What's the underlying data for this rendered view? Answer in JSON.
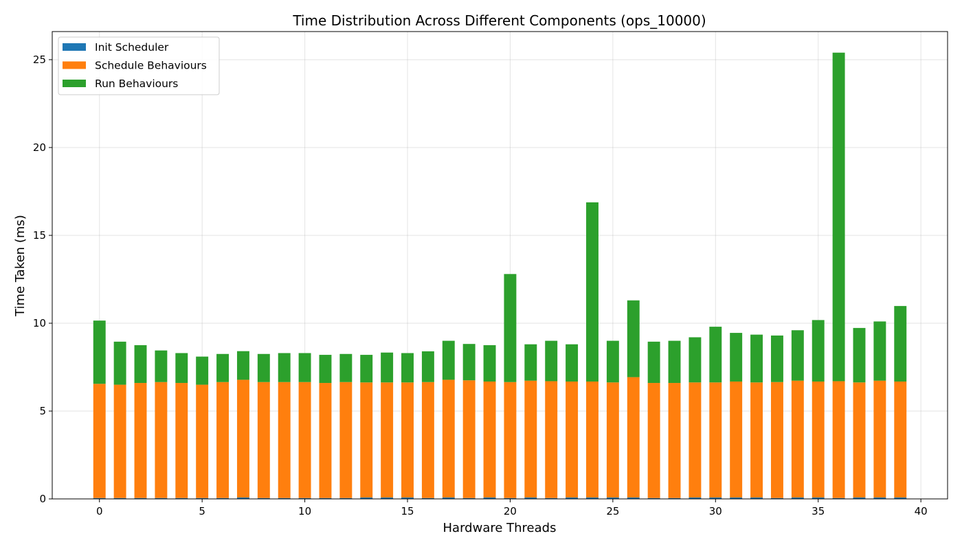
{
  "chart_data": {
    "type": "bar",
    "stacked": true,
    "title": "Time Distribution Across Different Components (ops_10000)",
    "xlabel": "Hardware Threads",
    "ylabel": "Time Taken (ms)",
    "xlim": [
      -2.3,
      41.3
    ],
    "ylim": [
      0,
      26.6
    ],
    "xticks": [
      0,
      5,
      10,
      15,
      20,
      25,
      30,
      35,
      40
    ],
    "yticks": [
      0,
      5,
      10,
      15,
      20,
      25
    ],
    "grid": true,
    "legend_position": "top-left",
    "x": [
      0,
      1,
      2,
      3,
      4,
      5,
      6,
      7,
      8,
      9,
      10,
      11,
      12,
      13,
      14,
      15,
      16,
      17,
      18,
      19,
      20,
      21,
      22,
      23,
      24,
      25,
      26,
      27,
      28,
      29,
      30,
      31,
      32,
      33,
      34,
      35,
      36,
      37,
      38,
      39
    ],
    "series": [
      {
        "name": "Init Scheduler",
        "color": "#1f77b4",
        "values": [
          0.05,
          0.05,
          0.05,
          0.05,
          0.05,
          0.05,
          0.05,
          0.08,
          0.05,
          0.05,
          0.05,
          0.05,
          0.05,
          0.08,
          0.08,
          0.08,
          0.05,
          0.08,
          0.05,
          0.08,
          0.05,
          0.08,
          0.05,
          0.08,
          0.08,
          0.08,
          0.08,
          0.05,
          0.05,
          0.08,
          0.08,
          0.08,
          0.08,
          0.05,
          0.08,
          0.08,
          0.05,
          0.08,
          0.08,
          0.08
        ]
      },
      {
        "name": "Schedule Behaviours",
        "color": "#ff7f0e",
        "values": [
          6.5,
          6.45,
          6.55,
          6.6,
          6.55,
          6.45,
          6.6,
          6.7,
          6.6,
          6.6,
          6.6,
          6.55,
          6.6,
          6.55,
          6.55,
          6.55,
          6.6,
          6.7,
          6.7,
          6.6,
          6.6,
          6.65,
          6.65,
          6.6,
          6.6,
          6.55,
          6.85,
          6.55,
          6.55,
          6.55,
          6.55,
          6.6,
          6.55,
          6.6,
          6.65,
          6.6,
          6.65,
          6.55,
          6.65,
          6.6
        ]
      },
      {
        "name": "Run Behaviours",
        "color": "#2ca02c",
        "values": [
          3.6,
          2.45,
          2.15,
          1.8,
          1.7,
          1.6,
          1.6,
          1.63,
          1.6,
          1.65,
          1.65,
          1.6,
          1.6,
          1.57,
          1.7,
          1.67,
          1.75,
          2.22,
          2.07,
          2.07,
          6.15,
          2.07,
          2.3,
          2.12,
          10.2,
          2.37,
          4.37,
          2.35,
          2.4,
          2.57,
          3.17,
          2.77,
          2.72,
          2.65,
          2.87,
          3.5,
          18.7,
          3.1,
          3.37,
          4.3
        ]
      }
    ]
  }
}
